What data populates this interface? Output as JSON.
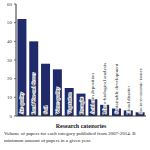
{
  "chart_data": {
    "type": "bar",
    "x_label": "Research categories",
    "caption": [
      "Volume of papers for each category published from 2007-2014. B",
      "minimum amount of papers in a given year."
    ],
    "categories": [
      "Air quality",
      "Land Use and Cover",
      "Soil",
      "Water quality",
      "Vegetation",
      "Drought",
      "Acid rain deposition",
      "Micro-biological analysis",
      "Sustainable development",
      "Flood disaster",
      "Socio-economic issues"
    ],
    "values": [
      52,
      40,
      28,
      25,
      15,
      12,
      9,
      6,
      4,
      3,
      2
    ],
    "color": "#1f2a6b",
    "ylim": [
      0,
      60
    ],
    "yticks": [
      0,
      10,
      20,
      30,
      40,
      50,
      60
    ],
    "grid": false
  }
}
